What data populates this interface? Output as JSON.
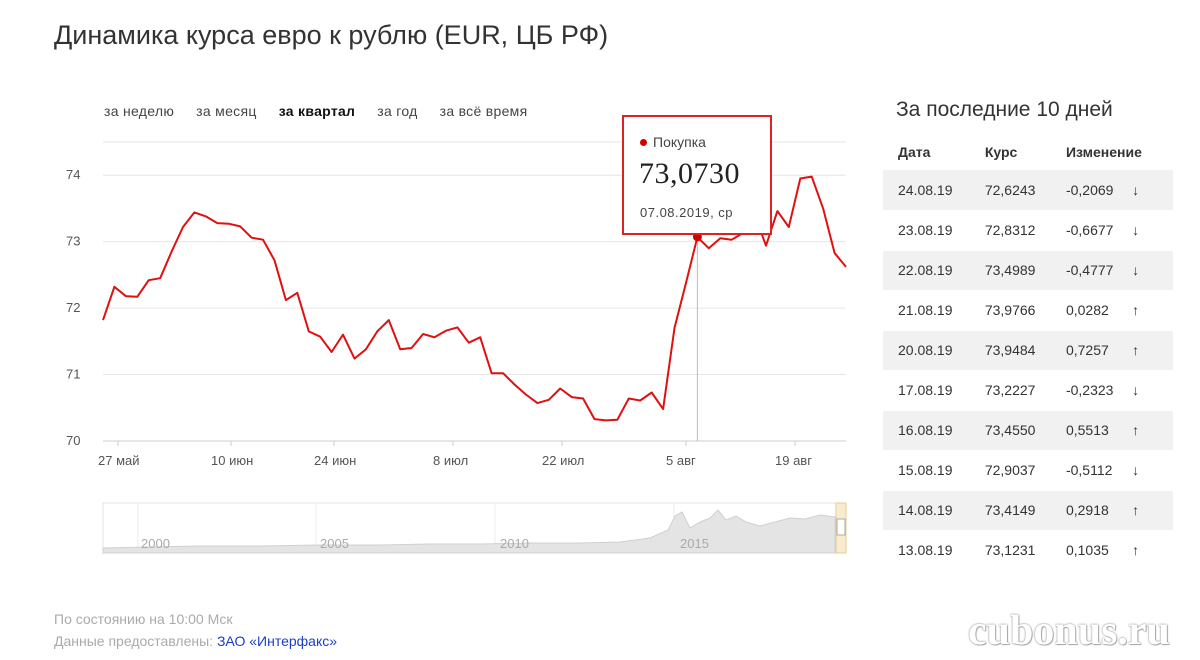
{
  "page_title": "Динамика курса евро к рублю (EUR, ЦБ РФ)",
  "period_tabs": [
    {
      "label": "за неделю",
      "active": false
    },
    {
      "label": "за месяц",
      "active": false
    },
    {
      "label": "за квартал",
      "active": true
    },
    {
      "label": "за год",
      "active": false
    },
    {
      "label": "за всё время",
      "active": false
    }
  ],
  "tooltip": {
    "series": "Покупка",
    "value": "73,0730",
    "date": "07.08.2019, ср"
  },
  "colors": {
    "line": "#e01010",
    "accent": "#d40000",
    "down": "#e33333",
    "up": "#22aa22"
  },
  "chart_data": {
    "type": "line",
    "x_tick_labels": [
      "27 май",
      "10 июн",
      "24 июн",
      "8 июл",
      "22 июл",
      "5 авг",
      "19 авг"
    ],
    "y_ticks": [
      70,
      71,
      72,
      73,
      74
    ],
    "ylim": [
      70,
      74.5
    ],
    "grid": true,
    "series": [
      {
        "values": [
          71.82,
          72.32,
          72.18,
          72.17,
          72.42,
          72.45,
          72.85,
          73.22,
          73.44,
          73.38,
          73.28,
          73.27,
          73.23,
          73.06,
          73.03,
          72.72,
          72.12,
          72.23,
          71.65,
          71.57,
          71.34,
          71.6,
          71.24,
          71.38,
          71.65,
          71.82,
          71.38,
          71.4,
          71.61,
          71.56,
          71.66,
          71.71,
          71.48,
          71.56,
          71.02,
          71.02,
          70.85,
          70.7,
          70.57,
          70.62,
          70.79,
          70.66,
          70.64,
          70.33,
          70.31,
          70.32,
          70.64,
          70.61,
          70.73,
          70.48,
          71.7,
          72.38,
          73.07,
          72.9,
          73.05,
          73.03,
          73.13,
          73.41,
          72.94,
          73.46,
          73.22,
          73.95,
          73.98,
          73.5,
          72.83,
          72.62
        ]
      }
    ],
    "highlight": {
      "index": 52,
      "value": 73.073,
      "date": "07.08.2019"
    },
    "overview": {
      "type": "area",
      "tick_labels": [
        "2000",
        "2005",
        "2010",
        "2015"
      ]
    }
  },
  "table": {
    "title": "За последние 10 дней",
    "headers": [
      "Дата",
      "Курс",
      "Изменение"
    ],
    "rows": [
      {
        "date": "24.08.19",
        "rate": "72,6243",
        "change": "-0,2069",
        "arrow": "↓",
        "dir": "down"
      },
      {
        "date": "23.08.19",
        "rate": "72,8312",
        "change": "-0,6677",
        "arrow": "↓",
        "dir": "down"
      },
      {
        "date": "22.08.19",
        "rate": "73,4989",
        "change": "-0,4777",
        "arrow": "↓",
        "dir": "down"
      },
      {
        "date": "21.08.19",
        "rate": "73,9766",
        "change": "0,0282",
        "arrow": "↑",
        "dir": "up"
      },
      {
        "date": "20.08.19",
        "rate": "73,9484",
        "change": "0,7257",
        "arrow": "↑",
        "dir": "up"
      },
      {
        "date": "17.08.19",
        "rate": "73,2227",
        "change": "-0,2323",
        "arrow": "↓",
        "dir": "down"
      },
      {
        "date": "16.08.19",
        "rate": "73,4550",
        "change": "0,5513",
        "arrow": "↑",
        "dir": "up"
      },
      {
        "date": "15.08.19",
        "rate": "72,9037",
        "change": "-0,5112",
        "arrow": "↓",
        "dir": "down"
      },
      {
        "date": "14.08.19",
        "rate": "73,4149",
        "change": "0,2918",
        "arrow": "↑",
        "dir": "up"
      },
      {
        "date": "13.08.19",
        "rate": "73,1231",
        "change": "0,1035",
        "arrow": "↑",
        "dir": "up"
      }
    ]
  },
  "footer": {
    "status": "По состоянию на 10:00 Мск",
    "source_prefix": "Данные предоставлены: ",
    "source_link": "ЗАО «Интерфакс»"
  },
  "watermark": "cubonus.ru"
}
